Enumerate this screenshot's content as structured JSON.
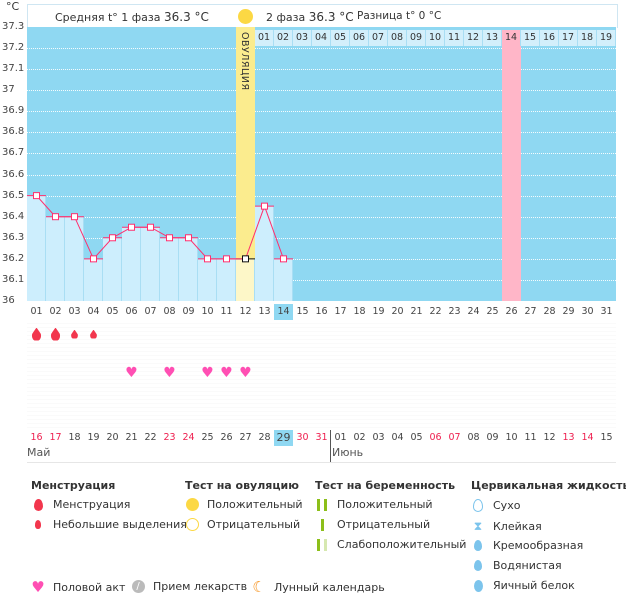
{
  "header": {
    "unit": "°C",
    "phase1": "Средняя t° 1 фаза",
    "phase1_val": "36.3 °C",
    "phase2": "2 фаза",
    "phase2_val": "36.3 °C",
    "diff": "Разница t°",
    "diff_val": "0 °C",
    "ovulation_label": "ОВУЛЯЦИЯ"
  },
  "chart_data": {
    "type": "line",
    "ylim": [
      36,
      37.3
    ],
    "y_ticks": [
      "37.3",
      "37.2",
      "37.1",
      "37",
      "36.9",
      "36.8",
      "36.7",
      "36.6",
      "36.5",
      "36.4",
      "36.3",
      "36.2",
      "36.1",
      "36"
    ],
    "cycle_days": [
      "01",
      "02",
      "03",
      "04",
      "05",
      "06",
      "07",
      "08",
      "09",
      "10",
      "11",
      "12",
      "13",
      "14",
      "15",
      "16",
      "17",
      "18",
      "19",
      "20",
      "21",
      "22",
      "23",
      "24",
      "25",
      "26",
      "27",
      "28",
      "29",
      "30",
      "31"
    ],
    "temperatures": [
      36.5,
      36.4,
      36.4,
      36.2,
      36.3,
      36.35,
      36.35,
      36.3,
      36.3,
      36.2,
      36.2,
      36.2,
      36.45,
      36.2
    ],
    "current_day": 14,
    "ovulation_day": 12,
    "next_cycle_days": [
      "01",
      "02",
      "03",
      "04",
      "05",
      "06",
      "07",
      "08",
      "09",
      "10",
      "11",
      "12",
      "13",
      "14",
      "15",
      "16",
      "17",
      "18",
      "19"
    ],
    "next_cycle_highlight": "14",
    "menstruation": [
      {
        "day": 1,
        "type": "heavy"
      },
      {
        "day": 2,
        "type": "heavy"
      },
      {
        "day": 3,
        "type": "light"
      },
      {
        "day": 4,
        "type": "light"
      }
    ],
    "intercourse_days": [
      6,
      8,
      10,
      11,
      12
    ],
    "dates": [
      "16",
      "17",
      "18",
      "19",
      "20",
      "21",
      "22",
      "23",
      "24",
      "25",
      "26",
      "27",
      "28",
      "29",
      "30",
      "31",
      "01",
      "02",
      "03",
      "04",
      "05",
      "06",
      "07",
      "08",
      "09",
      "10",
      "11",
      "12",
      "13",
      "14",
      "15"
    ],
    "weekend_dates": [
      0,
      1,
      7,
      8,
      14,
      15,
      21,
      22,
      28,
      29
    ],
    "today_index": 13,
    "months": [
      "Май",
      "Июнь"
    ]
  },
  "legend": {
    "menstruation": {
      "title": "Менструация",
      "items": [
        "Менструация",
        "Небольшие выделения"
      ]
    },
    "ovulation_test": {
      "title": "Тест на овуляцию",
      "items": [
        "Положительный",
        "Отрицательный"
      ]
    },
    "pregnancy_test": {
      "title": "Тест на беременность",
      "items": [
        "Положительный",
        "Отрицательный",
        "Слабоположительный"
      ]
    },
    "cervical": {
      "title": "Цервикальная жидкость",
      "items": [
        "Сухо",
        "Клейкая",
        "Кремообразная",
        "Водянистая",
        "Яичный белок"
      ]
    },
    "other": [
      "Половой акт",
      "Прием лекарств",
      "Лунный календарь"
    ]
  },
  "colors": {
    "plot": "#8fd8f2",
    "bar": "#cdeefd",
    "line": "#ff2f6e",
    "ovulation": "#fbec8e",
    "pink": "#ffb6c8",
    "weekend": "#ee1f4f"
  }
}
